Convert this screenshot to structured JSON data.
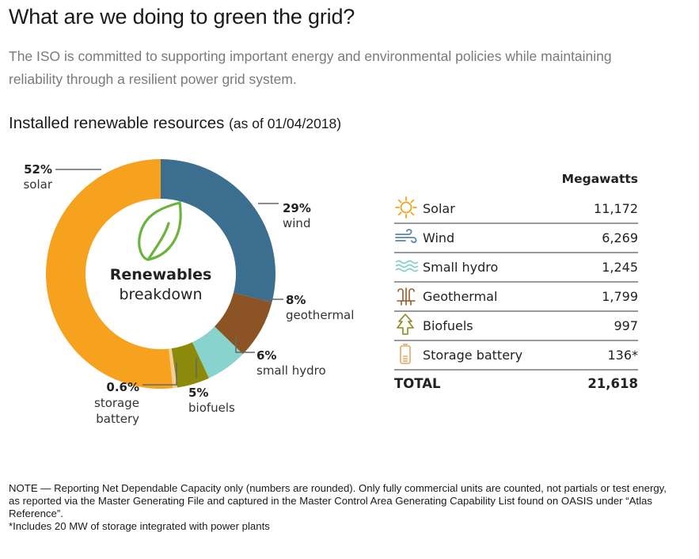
{
  "header": {
    "title": "What are we doing to green the grid?",
    "intro": "The ISO is committed to supporting important energy and environmental policies while maintaining reliability through a resilient power grid system."
  },
  "section": {
    "title": "Installed renewable resources",
    "date": "(as of 01/04/2018)"
  },
  "chart_data": {
    "type": "pie",
    "style": "donut",
    "title": "Renewables breakdown",
    "title_line1": "Renewables",
    "title_line2": "breakdown",
    "start": "12 o'clock, clockwise",
    "slices": [
      {
        "name": "wind",
        "pct_label": "29%",
        "value": 29.0,
        "color": "#3c6e8f"
      },
      {
        "name": "geothermal",
        "pct_label": "8%",
        "value": 8.3,
        "color": "#8c5425"
      },
      {
        "name": "small hydro",
        "pct_label": "6%",
        "value": 5.8,
        "color": "#88d3cd"
      },
      {
        "name": "biofuels",
        "pct_label": "5%",
        "value": 4.6,
        "color": "#8b8a0b"
      },
      {
        "name": "storage battery",
        "pct_label": "0.6%",
        "value": 0.6,
        "color": "#f7cf94"
      },
      {
        "name": "solar",
        "pct_label": "52%",
        "value": 51.7,
        "color": "#f6a21e"
      }
    ]
  },
  "table": {
    "header": "Megawatts",
    "rows": [
      {
        "icon": "sun-icon",
        "label": "Solar",
        "value": "11,172",
        "color": "#f6a21e"
      },
      {
        "icon": "wind-icon",
        "label": "Wind",
        "value": "6,269",
        "color": "#5a86aa"
      },
      {
        "icon": "waves-icon",
        "label": "Small hydro",
        "value": "1,245",
        "color": "#7fd0c8"
      },
      {
        "icon": "geothermal-icon",
        "label": "Geothermal",
        "value": "1,799",
        "color": "#9a5a2a"
      },
      {
        "icon": "tree-icon",
        "label": "Biofuels",
        "value": "997",
        "color": "#8a8a1a"
      },
      {
        "icon": "battery-icon",
        "label": "Storage battery",
        "value": "136*",
        "color": "#e8a860"
      }
    ],
    "total_label": "TOTAL",
    "total_value": "21,618"
  },
  "note": {
    "line1": "NOTE — Reporting Net Dependable Capacity only (numbers are rounded). Only fully commercial units are counted, not partials or test energy, as reported via the Master Generating File and captured in the Master Control Area Generating Capability List found on OASIS under “Atlas Reference”.",
    "line2": "*Includes 20 MW of storage integrated with power plants"
  }
}
